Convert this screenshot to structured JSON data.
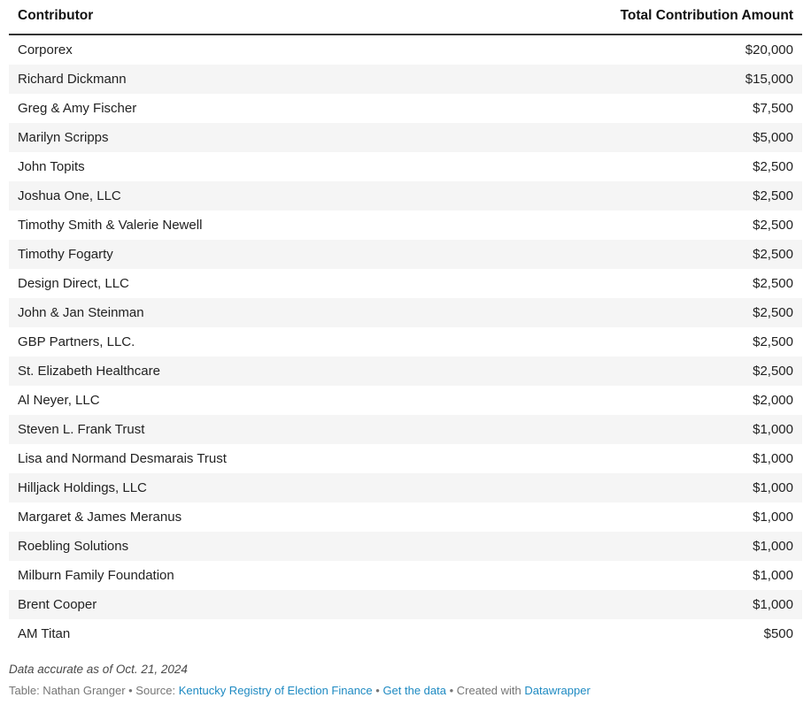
{
  "chart_data": {
    "type": "table",
    "columns": [
      "Contributor",
      "Total Contribution Amount"
    ],
    "rows": [
      {
        "contributor": "Corporex",
        "amount": "$20,000",
        "value": 20000
      },
      {
        "contributor": "Richard Dickmann",
        "amount": "$15,000",
        "value": 15000
      },
      {
        "contributor": "Greg & Amy Fischer",
        "amount": "$7,500",
        "value": 7500
      },
      {
        "contributor": "Marilyn Scripps",
        "amount": "$5,000",
        "value": 5000
      },
      {
        "contributor": "John Topits",
        "amount": "$2,500",
        "value": 2500
      },
      {
        "contributor": "Joshua One, LLC",
        "amount": "$2,500",
        "value": 2500
      },
      {
        "contributor": "Timothy Smith & Valerie Newell",
        "amount": "$2,500",
        "value": 2500
      },
      {
        "contributor": "Timothy Fogarty",
        "amount": "$2,500",
        "value": 2500
      },
      {
        "contributor": "Design Direct, LLC",
        "amount": "$2,500",
        "value": 2500
      },
      {
        "contributor": "John & Jan Steinman",
        "amount": "$2,500",
        "value": 2500
      },
      {
        "contributor": "GBP Partners, LLC.",
        "amount": "$2,500",
        "value": 2500
      },
      {
        "contributor": "St. Elizabeth Healthcare",
        "amount": "$2,500",
        "value": 2500
      },
      {
        "contributor": "Al Neyer, LLC",
        "amount": "$2,000",
        "value": 2000
      },
      {
        "contributor": "Steven L. Frank Trust",
        "amount": "$1,000",
        "value": 1000
      },
      {
        "contributor": "Lisa and Normand Desmarais Trust",
        "amount": "$1,000",
        "value": 1000
      },
      {
        "contributor": "Hilljack Holdings, LLC",
        "amount": "$1,000",
        "value": 1000
      },
      {
        "contributor": "Margaret & James Meranus",
        "amount": "$1,000",
        "value": 1000
      },
      {
        "contributor": "Roebling Solutions",
        "amount": "$1,000",
        "value": 1000
      },
      {
        "contributor": "Milburn Family Foundation",
        "amount": "$1,000",
        "value": 1000
      },
      {
        "contributor": "Brent Cooper",
        "amount": "$1,000",
        "value": 1000
      },
      {
        "contributor": "AM Titan",
        "amount": "$500",
        "value": 500
      }
    ],
    "layout": {
      "stripe_color": "#f5f5f5",
      "header_rule_color": "#333333",
      "link_color": "#1e8ac2",
      "amount_alignment": "right"
    }
  },
  "footer": {
    "note": "Data accurate as of Oct. 21, 2024",
    "byline": {
      "prefix": "Table: Nathan Granger • Source: ",
      "source_link": "Kentucky Registry of Election Finance",
      "sep1": " • ",
      "data_link": "Get the data",
      "sep2": " • Created with ",
      "tool_link": "Datawrapper"
    }
  }
}
